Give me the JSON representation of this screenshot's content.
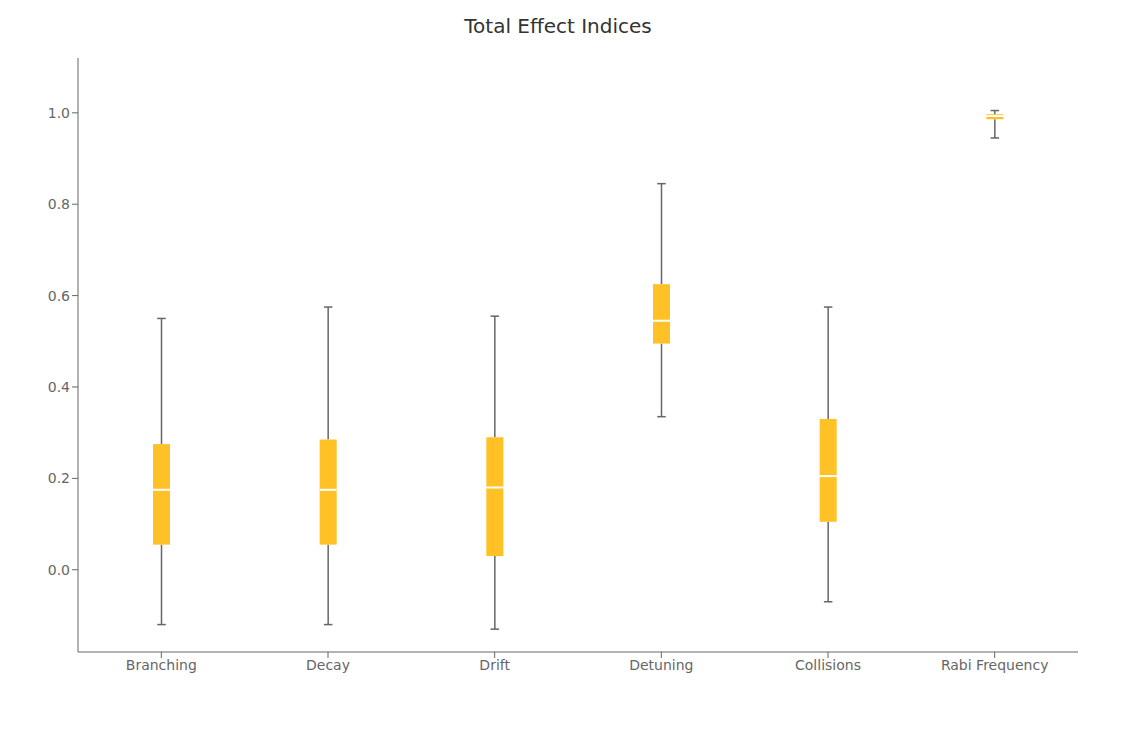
{
  "chart_data": {
    "type": "box",
    "title": "Total Effect Indices",
    "categories": [
      "Branching",
      "Decay",
      "Drift",
      "Detuning",
      "Collisions",
      "Rabi Frequency"
    ],
    "whislo": [
      -0.12,
      -0.12,
      -0.13,
      0.335,
      -0.07,
      0.945
    ],
    "q1": [
      0.055,
      0.055,
      0.03,
      0.495,
      0.105,
      0.986
    ],
    "med": [
      0.175,
      0.175,
      0.18,
      0.545,
      0.205,
      0.993
    ],
    "q3": [
      0.275,
      0.285,
      0.29,
      0.625,
      0.33,
      0.997
    ],
    "whishi": [
      0.55,
      0.575,
      0.555,
      0.845,
      0.575,
      1.005
    ],
    "color": "#FFC125",
    "ylim": [
      -0.18,
      1.12
    ],
    "yticks": [
      {
        "value": 0.0,
        "label": "0.0"
      },
      0.2,
      0.4,
      0.6,
      0.8,
      {
        "value": 1.0,
        "label": "1.0"
      }
    ],
    "grid": false
  }
}
